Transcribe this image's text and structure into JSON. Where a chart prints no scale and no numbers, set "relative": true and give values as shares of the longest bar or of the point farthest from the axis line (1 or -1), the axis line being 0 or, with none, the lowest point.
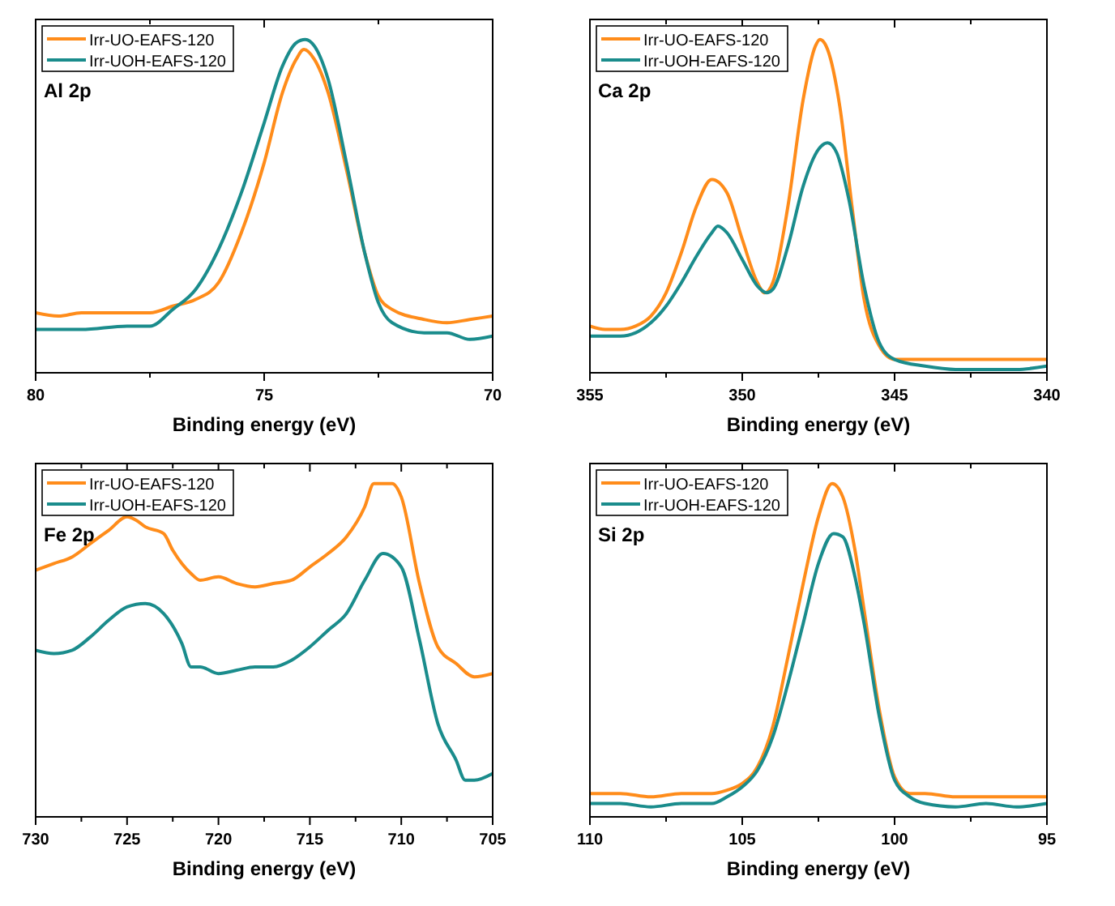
{
  "chart_data": [
    {
      "type": "line",
      "relative": true,
      "xlabel": "Binding energy (eV)",
      "annotations": [
        "Al 2p"
      ],
      "legend": "top left",
      "xlim": [
        80,
        70
      ],
      "xticks": [
        80,
        {
          "value": 77.5,
          "label": null
        },
        75,
        {
          "value": 72.5,
          "label": null
        },
        70
      ],
      "series": [
        {
          "name": "Irr-UO-EAFS-120",
          "color": "#ff8c1a",
          "x": [
            80,
            79.5,
            79,
            78.5,
            78,
            77.5,
            77,
            76.5,
            76,
            75.5,
            75,
            74.6,
            74.3,
            74.13,
            73.9,
            73.6,
            73.2,
            72.8,
            72.5,
            72.2,
            71.5,
            71,
            70.5,
            70
          ],
          "values": [
            0.18,
            0.17,
            0.18,
            0.18,
            0.18,
            0.18,
            0.2,
            0.22,
            0.27,
            0.42,
            0.63,
            0.84,
            0.94,
            0.97,
            0.94,
            0.84,
            0.61,
            0.36,
            0.23,
            0.19,
            0.16,
            0.15,
            0.16,
            0.17
          ]
        },
        {
          "name": "Irr-UOH-EAFS-120",
          "color": "#1a8c8c",
          "x": [
            80,
            79,
            78,
            77.5,
            77,
            76.5,
            76,
            75.5,
            75,
            74.6,
            74.3,
            74.1,
            73.9,
            73.6,
            73.2,
            72.8,
            72.5,
            72.2,
            71.5,
            71,
            70.5,
            70
          ],
          "values": [
            0.13,
            0.13,
            0.14,
            0.14,
            0.19,
            0.25,
            0.37,
            0.54,
            0.75,
            0.92,
            0.99,
            1,
            0.98,
            0.88,
            0.63,
            0.36,
            0.21,
            0.15,
            0.12,
            0.12,
            0.1,
            0.11
          ]
        }
      ]
    },
    {
      "type": "line",
      "relative": true,
      "xlabel": "Binding energy (eV)",
      "annotations": [
        "Ca 2p"
      ],
      "legend": "top left",
      "xlim": [
        355,
        340
      ],
      "xticks": [
        355,
        {
          "value": 352.5,
          "label": null
        },
        350,
        {
          "value": 347.5,
          "label": null
        },
        345,
        {
          "value": 342.5,
          "label": null
        },
        340
      ],
      "series": [
        {
          "name": "Irr-UO-EAFS-120",
          "color": "#ff8c1a",
          "x": [
            355,
            354.5,
            354,
            353.5,
            353,
            352.5,
            352,
            351.5,
            351,
            350.5,
            350,
            349.5,
            349.26,
            349,
            348.5,
            348,
            347.6,
            347.45,
            347.2,
            346.8,
            346.4,
            346,
            345.5,
            345,
            344,
            343,
            342,
            341,
            340
          ],
          "values": [
            0.14,
            0.13,
            0.13,
            0.14,
            0.17,
            0.24,
            0.36,
            0.5,
            0.58,
            0.54,
            0.4,
            0.27,
            0.24,
            0.27,
            0.5,
            0.82,
            0.98,
            1,
            0.97,
            0.8,
            0.5,
            0.22,
            0.08,
            0.04,
            0.04,
            0.04,
            0.04,
            0.04,
            0.04
          ]
        },
        {
          "name": "Irr-UOH-EAFS-120",
          "color": "#1a8c8c",
          "x": [
            355,
            354,
            353.5,
            353,
            352.5,
            352,
            351.5,
            351,
            350.8,
            350.5,
            350,
            349.5,
            349.2,
            349,
            348.5,
            348,
            347.5,
            347.2,
            346.9,
            346.5,
            346,
            345.5,
            345,
            344,
            343,
            342,
            341,
            340
          ],
          "values": [
            0.11,
            0.11,
            0.12,
            0.15,
            0.2,
            0.27,
            0.35,
            0.42,
            0.44,
            0.42,
            0.34,
            0.26,
            0.24,
            0.25,
            0.38,
            0.56,
            0.67,
            0.69,
            0.66,
            0.52,
            0.26,
            0.09,
            0.04,
            0.02,
            0.01,
            0.01,
            0.01,
            0.02
          ]
        }
      ]
    },
    {
      "type": "line",
      "relative": true,
      "xlabel": "Binding energy (eV)",
      "annotations": [
        "Fe 2p"
      ],
      "legend": "top left",
      "xlim": [
        730,
        705
      ],
      "xticks": [
        730,
        {
          "value": 727.5,
          "label": null
        },
        725,
        {
          "value": 722.5,
          "label": null
        },
        720,
        {
          "value": 717.5,
          "label": null
        },
        715,
        {
          "value": 712.5,
          "label": null
        },
        710,
        {
          "value": 707.5,
          "label": null
        },
        705
      ],
      "series": [
        {
          "name": "Irr-UO-EAFS-120",
          "color": "#ff8c1a",
          "x": [
            730,
            729,
            728,
            727,
            726,
            725,
            724.5,
            724,
            723,
            722.5,
            722,
            721.5,
            721,
            720,
            719,
            718,
            717,
            716,
            715,
            714,
            713,
            712,
            711.5,
            710.5,
            710,
            709,
            708,
            707,
            706,
            705
          ],
          "values": [
            0.74,
            0.76,
            0.78,
            0.82,
            0.86,
            0.9,
            0.89,
            0.87,
            0.85,
            0.8,
            0.76,
            0.73,
            0.71,
            0.72,
            0.7,
            0.69,
            0.7,
            0.71,
            0.75,
            0.79,
            0.84,
            0.93,
            1,
            1,
            0.96,
            0.7,
            0.51,
            0.46,
            0.42,
            0.43
          ]
        },
        {
          "name": "Irr-UOH-EAFS-120",
          "color": "#1a8c8c",
          "x": [
            730,
            729,
            728,
            727,
            726,
            725,
            724,
            723,
            722,
            721.5,
            721,
            720,
            719,
            718,
            717,
            716,
            715,
            714,
            713,
            712,
            711,
            710,
            709,
            708,
            707,
            706.5,
            706,
            705
          ],
          "values": [
            0.5,
            0.49,
            0.5,
            0.54,
            0.59,
            0.63,
            0.64,
            0.61,
            0.52,
            0.45,
            0.45,
            0.43,
            0.44,
            0.45,
            0.45,
            0.47,
            0.51,
            0.56,
            0.61,
            0.71,
            0.79,
            0.75,
            0.53,
            0.28,
            0.17,
            0.11,
            0.11,
            0.13
          ]
        }
      ]
    },
    {
      "type": "line",
      "relative": true,
      "xlabel": "Binding energy (eV)",
      "annotations": [
        "Si 2p"
      ],
      "legend": "top left",
      "xlim": [
        110,
        95
      ],
      "xticks": [
        110,
        {
          "value": 107.5,
          "label": null
        },
        105,
        {
          "value": 102.5,
          "label": null
        },
        100,
        {
          "value": 97.5,
          "label": null
        },
        95
      ],
      "series": [
        {
          "name": "Irr-UO-EAFS-120",
          "color": "#ff8c1a",
          "x": [
            110,
            109,
            108,
            107,
            106,
            105.5,
            105,
            104.5,
            104,
            103.5,
            103,
            102.5,
            102.05,
            101.7,
            101.3,
            101,
            100.5,
            100,
            99.5,
            99,
            98,
            97,
            96,
            95
          ],
          "values": [
            0.07,
            0.07,
            0.06,
            0.07,
            0.07,
            0.08,
            0.1,
            0.15,
            0.27,
            0.48,
            0.7,
            0.9,
            1,
            0.96,
            0.8,
            0.62,
            0.32,
            0.12,
            0.07,
            0.07,
            0.06,
            0.06,
            0.06,
            0.06
          ]
        },
        {
          "name": "Irr-UOH-EAFS-120",
          "color": "#1a8c8c",
          "x": [
            110,
            109,
            108,
            107,
            106,
            105.5,
            105,
            104.5,
            104,
            103.5,
            103,
            102.5,
            102,
            101.7,
            101.3,
            101,
            100.5,
            100,
            99.5,
            99,
            98,
            97,
            96,
            95
          ],
          "values": [
            0.04,
            0.04,
            0.03,
            0.04,
            0.04,
            0.06,
            0.09,
            0.14,
            0.24,
            0.4,
            0.58,
            0.76,
            0.85,
            0.84,
            0.72,
            0.58,
            0.3,
            0.11,
            0.06,
            0.04,
            0.03,
            0.04,
            0.03,
            0.04
          ]
        }
      ]
    }
  ]
}
